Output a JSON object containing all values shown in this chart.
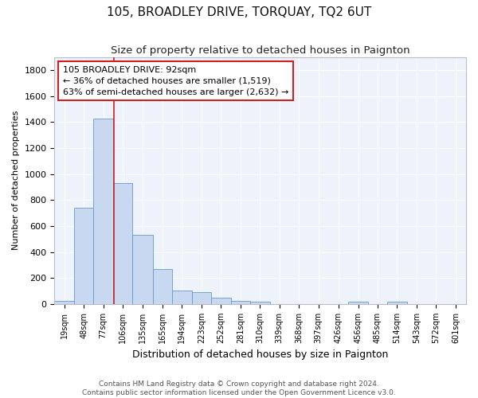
{
  "title": "105, BROADLEY DRIVE, TORQUAY, TQ2 6UT",
  "subtitle": "Size of property relative to detached houses in Paignton",
  "xlabel": "Distribution of detached houses by size in Paignton",
  "ylabel": "Number of detached properties",
  "footnote1": "Contains HM Land Registry data © Crown copyright and database right 2024.",
  "footnote2": "Contains public sector information licensed under the Open Government Licence v3.0.",
  "annotation_title": "105 BROADLEY DRIVE: 92sqm",
  "annotation_line2": "← 36% of detached houses are smaller (1,519)",
  "annotation_line3": "63% of semi-detached houses are larger (2,632) →",
  "bar_color": "#c8d8f0",
  "bar_edge_color": "#6699cc",
  "vline_color": "#cc2222",
  "vline_x": 92,
  "categories": [
    "19sqm",
    "48sqm",
    "77sqm",
    "106sqm",
    "135sqm",
    "165sqm",
    "194sqm",
    "223sqm",
    "252sqm",
    "281sqm",
    "310sqm",
    "339sqm",
    "368sqm",
    "397sqm",
    "426sqm",
    "456sqm",
    "485sqm",
    "514sqm",
    "543sqm",
    "572sqm",
    "601sqm"
  ],
  "bin_edges": [
    4,
    33,
    62,
    91,
    120,
    150,
    179,
    208,
    237,
    266,
    295,
    324,
    353,
    382,
    411,
    441,
    470,
    499,
    528,
    557,
    586,
    616
  ],
  "values": [
    22,
    738,
    1425,
    930,
    530,
    270,
    105,
    90,
    47,
    27,
    15,
    0,
    0,
    0,
    0,
    15,
    0,
    15,
    0,
    0,
    0
  ],
  "ylim": [
    0,
    1900
  ],
  "yticks": [
    0,
    200,
    400,
    600,
    800,
    1000,
    1200,
    1400,
    1600,
    1800
  ],
  "background_color": "#eef2fa",
  "fig_background": "#ffffff",
  "title_fontsize": 11,
  "subtitle_fontsize": 9.5,
  "xlabel_fontsize": 9,
  "ylabel_fontsize": 8,
  "annotation_box_color": "#ffffff",
  "annotation_box_edge": "#cc2222",
  "annotation_fontsize": 8,
  "footnote_fontsize": 6.5,
  "footnote_color": "#555555"
}
